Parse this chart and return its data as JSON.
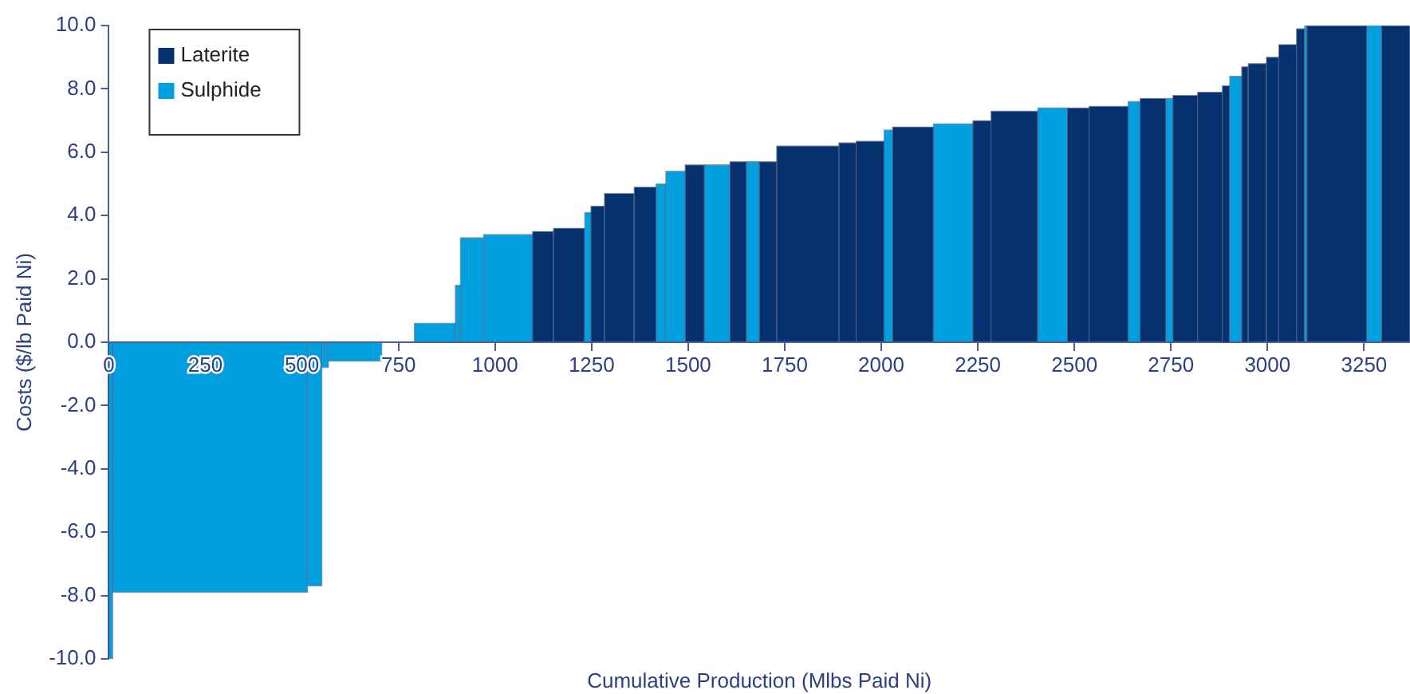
{
  "chart_data": {
    "type": "histogram",
    "xlabel": "Cumulative Production (Mlbs Paid Ni)",
    "ylabel": "Costs ($/lb Paid Ni)",
    "bins": [
      0,
      10,
      515,
      552,
      569,
      707,
      791,
      897,
      910,
      970,
      1097,
      1151,
      1232,
      1248,
      1283,
      1360,
      1417,
      1442,
      1492,
      1542,
      1608,
      1651,
      1684,
      1729,
      1890,
      1935,
      2007,
      2029,
      2135,
      2237,
      2284,
      2405,
      2482,
      2538,
      2639,
      2670,
      2737,
      2755,
      2819,
      2883,
      2902,
      2933,
      2950,
      2997,
      3029,
      3075,
      3096,
      3102,
      3257,
      3295,
      3369
    ],
    "series": [
      {
        "name": "Laterite",
        "color": "#06316f",
        "values": [
          null,
          null,
          null,
          null,
          null,
          null,
          null,
          null,
          null,
          null,
          3.5,
          3.6,
          null,
          4.3,
          4.7,
          4.9,
          null,
          null,
          5.6,
          null,
          5.7,
          null,
          5.7,
          6.2,
          6.3,
          6.35,
          null,
          6.8,
          null,
          7.0,
          7.3,
          null,
          7.4,
          7.45,
          null,
          7.7,
          null,
          7.8,
          7.9,
          8.1,
          null,
          8.7,
          8.8,
          9.0,
          9.4,
          9.9,
          null,
          10,
          null,
          10
        ]
      },
      {
        "name": "Sulphide",
        "color": "#00a0e0",
        "values": [
          -10,
          -7.9,
          -7.7,
          -0.8,
          -0.6,
          null,
          0.6,
          1.8,
          3.3,
          3.4,
          null,
          null,
          4.1,
          null,
          null,
          null,
          5.0,
          5.4,
          null,
          5.6,
          null,
          5.7,
          null,
          null,
          null,
          null,
          6.7,
          null,
          6.9,
          null,
          null,
          7.4,
          null,
          null,
          7.6,
          null,
          7.7,
          null,
          null,
          null,
          8.4,
          null,
          null,
          null,
          null,
          null,
          10,
          null,
          10,
          null
        ]
      }
    ],
    "xlim": [
      0,
      3369
    ],
    "xticks": [
      0,
      250,
      500,
      750,
      1000,
      1250,
      1500,
      1750,
      2000,
      2250,
      2500,
      2750,
      3000,
      3250
    ],
    "ylim": [
      -10,
      10
    ],
    "yticks": [
      {
        "value": -10,
        "label": "-10.0"
      },
      {
        "value": -8,
        "label": "-8.0"
      },
      {
        "value": -6,
        "label": "-6.0"
      },
      {
        "value": -4,
        "label": "-4.0"
      },
      {
        "value": -2,
        "label": "-2.0"
      },
      {
        "value": 0,
        "label": "0.0"
      },
      {
        "value": 2,
        "label": "2.0"
      },
      {
        "value": 4,
        "label": "4.0"
      },
      {
        "value": 6,
        "label": "6.0"
      },
      {
        "value": 8,
        "label": "8.0"
      },
      {
        "value": 10,
        "label": "10.0"
      }
    ],
    "legend": "top left"
  }
}
